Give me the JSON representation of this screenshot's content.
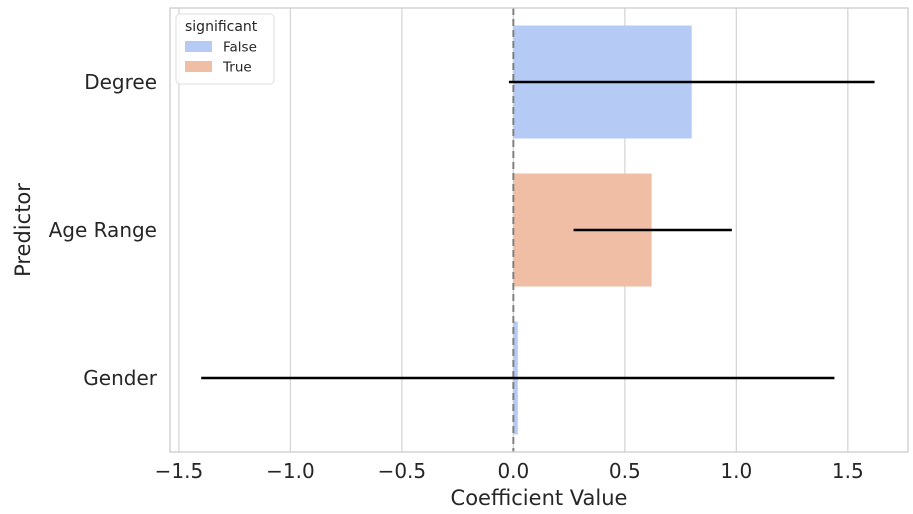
{
  "chart_data": {
    "type": "bar",
    "orientation": "horizontal",
    "categories": [
      "Degree",
      "Age Range",
      "Gender"
    ],
    "values": [
      0.8,
      0.62,
      0.02
    ],
    "significant": [
      "False",
      "True",
      "False"
    ],
    "error_low": [
      -0.02,
      0.27,
      -1.4
    ],
    "error_high": [
      1.62,
      0.98,
      1.44
    ],
    "xlabel": "Coefficient Value",
    "ylabel": "Predictor",
    "xlim": [
      -1.54,
      1.77
    ],
    "xticks": [
      -1.5,
      -1.0,
      -0.5,
      0.0,
      0.5,
      1.0,
      1.5
    ],
    "xtick_labels": [
      "−1.5",
      "−1.0",
      "−0.5",
      "0.0",
      "0.5",
      "1.0",
      "1.5"
    ],
    "reference_line": 0.0,
    "grid": "x",
    "legend": {
      "title": "significant",
      "placement": "top-left",
      "entries": [
        {
          "label": "False",
          "color": "#b5cbf5"
        },
        {
          "label": "True",
          "color": "#efbea5"
        }
      ]
    },
    "colors": {
      "False": "#b5cbf5",
      "True": "#efbea5",
      "error_bar": "#000000",
      "reference_line": "#808080",
      "grid": "#d6d6d6",
      "spine": "#cccccc"
    }
  }
}
